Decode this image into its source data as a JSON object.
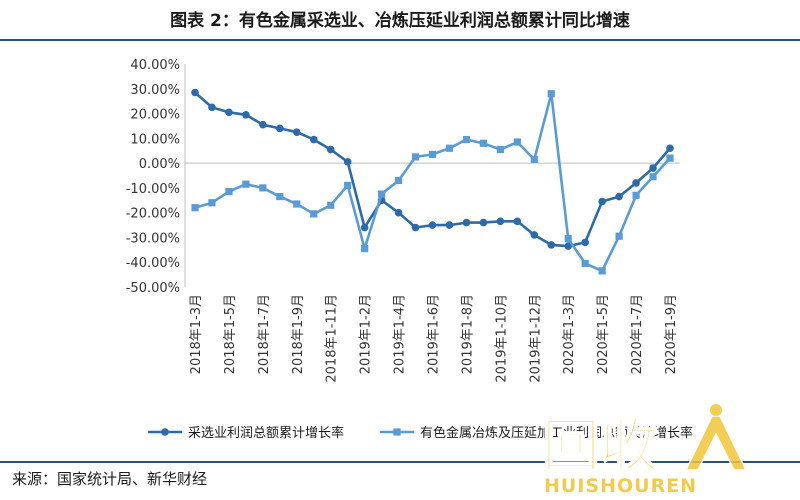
{
  "title": "图表 2：有色金属采选业、冶炼压延业利润总额累计同比增速",
  "source": "来源：国家统计局、新华财经",
  "watermark": {
    "logo_text": "回收",
    "subtext": "HUISHOUREN",
    "color": "#f0c53a"
  },
  "chart_data": {
    "type": "line",
    "title": "",
    "xlabel": "",
    "ylabel": "",
    "ylim": [
      -50,
      40
    ],
    "yticks": [
      "40.00%",
      "30.00%",
      "20.00%",
      "10.00%",
      "0.00%",
      "-10.00%",
      "-20.00%",
      "-30.00%",
      "-40.00%",
      "-50.00%"
    ],
    "x_tick_labels": [
      "2018年1-3月",
      "2018年1-5月",
      "2018年1-7月",
      "2018年1-9月",
      "2018年1-11月",
      "2019年1-2月",
      "2019年1-4月",
      "2019年1-6月",
      "2019年1-8月",
      "2019年1-10月",
      "2019年1-12月",
      "2020年1-3月",
      "2020年1-5月",
      "2020年1-7月",
      "2020年1-9月"
    ],
    "series": [
      {
        "name": "采选业利润总额累计增长率",
        "color": "#2c6aa8",
        "marker": "circle",
        "values": [
          28.5,
          22.5,
          20.5,
          19.5,
          15.5,
          14,
          12.5,
          9.5,
          5.5,
          0.5,
          -26,
          -15,
          -20,
          -26,
          -25,
          -25,
          -24,
          -24,
          -23.5,
          -23.5,
          -29,
          -33,
          -33.5,
          -32,
          -15.5,
          -13.5,
          -8,
          -2,
          6
        ]
      },
      {
        "name": "有色金属冶炼及压延加工业利润总额累计增长率",
        "color": "#5a9bd5",
        "marker": "square",
        "values": [
          -18,
          -16,
          -11.5,
          -8.5,
          -10,
          -13.5,
          -16.5,
          -20.5,
          -17,
          -9,
          -34.5,
          -12.5,
          -7,
          2.5,
          3.5,
          6,
          9.5,
          8,
          5.5,
          8.5,
          1.5,
          28,
          -30.5,
          -40.5,
          -43.5,
          -29.5,
          -13,
          -5.5,
          2
        ]
      }
    ],
    "grid": false,
    "legend_position": "bottom"
  }
}
